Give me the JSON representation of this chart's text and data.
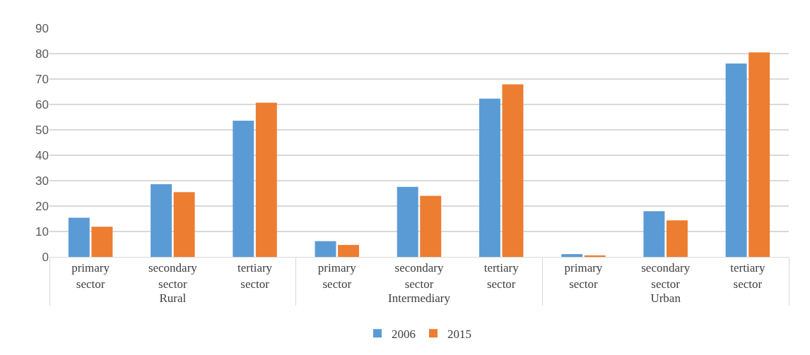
{
  "chart_data": {
    "type": "bar",
    "categories": [
      "primary sector",
      "secondary sector",
      "tertiary sector",
      "primary sector",
      "secondary sector",
      "tertiary sector",
      "primary sector",
      "secondary sector",
      "tertiary sector"
    ],
    "annotations": [
      "Rural",
      "Intermediary",
      "Urban"
    ],
    "series": [
      {
        "name": "2006",
        "color": "#5b9bd5",
        "values": [
          15.4,
          28.6,
          53.6,
          6.2,
          27.6,
          62.3,
          1.1,
          18.0,
          76.1
        ]
      },
      {
        "name": "2015",
        "color": "#ed7d31",
        "values": [
          11.9,
          25.5,
          60.7,
          4.7,
          24.0,
          67.9,
          0.6,
          14.4,
          80.5
        ]
      }
    ],
    "ylim": [
      0,
      90
    ],
    "yticks": [
      0,
      10,
      20,
      30,
      40,
      50,
      60,
      70,
      80,
      90
    ],
    "grid": "y",
    "legend": "bottom"
  }
}
